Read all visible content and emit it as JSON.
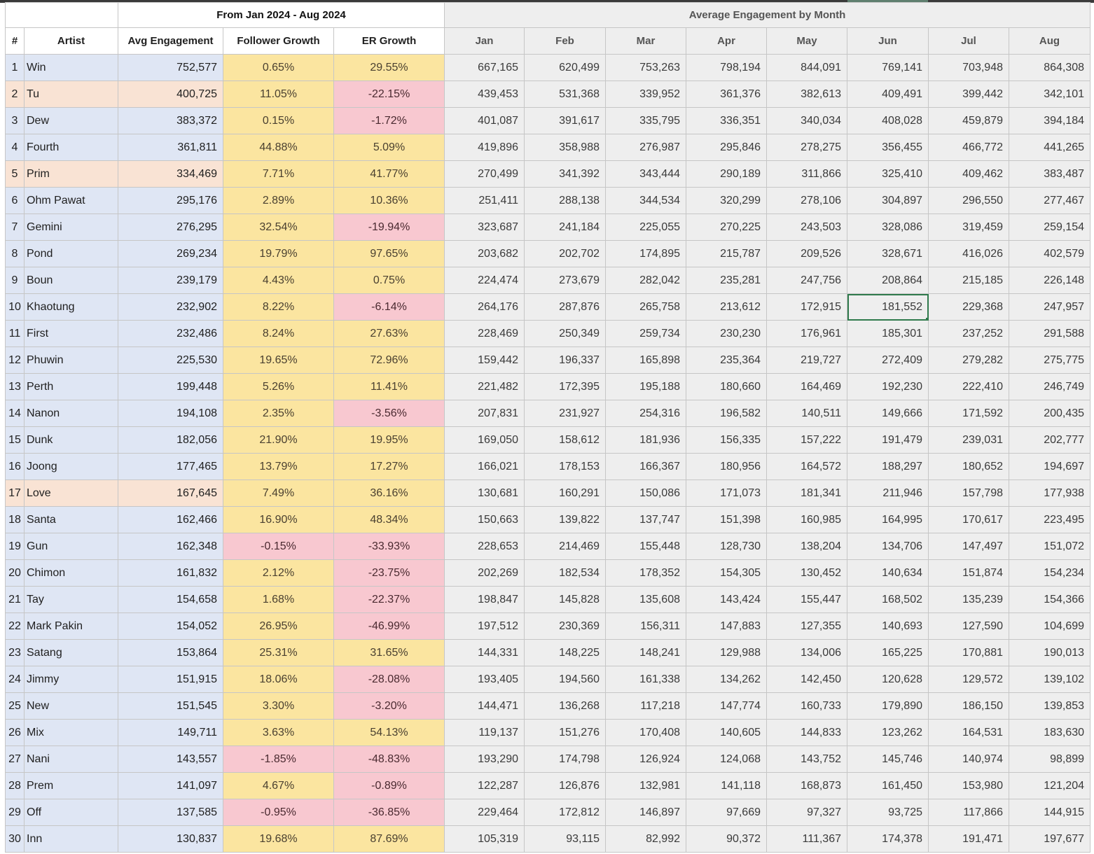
{
  "header": {
    "period_label": "From Jan 2024 - Aug 2024",
    "monthly_label": "Average Engagement by Month",
    "columns": [
      "#",
      "Artist",
      "Avg Engagement",
      "Follower Growth",
      "ER Growth"
    ],
    "months": [
      "Jan",
      "Feb",
      "Mar",
      "Apr",
      "May",
      "Jun",
      "Jul",
      "Aug"
    ]
  },
  "colors": {
    "row_blue": "#dfe6f4",
    "row_peach": "#f9e3d4",
    "positive_growth": "#fbe5a0",
    "negative_growth": "#f8c8d0",
    "monthly_bg": "#eeeeee",
    "selection": "#2f7a4c"
  },
  "selected_cell": {
    "row": "10",
    "month": "Jun",
    "value": "181,552"
  },
  "rows": [
    {
      "rank": "1",
      "artist": "Win",
      "tone": "blue",
      "avg": "752,577",
      "fg": "0.65%",
      "fg_neg": false,
      "er": "29.55%",
      "er_neg": false,
      "months": [
        "667,165",
        "620,499",
        "753,263",
        "798,194",
        "844,091",
        "769,141",
        "703,948",
        "864,308"
      ]
    },
    {
      "rank": "2",
      "artist": "Tu",
      "tone": "peach",
      "avg": "400,725",
      "fg": "11.05%",
      "fg_neg": false,
      "er": "-22.15%",
      "er_neg": true,
      "months": [
        "439,453",
        "531,368",
        "339,952",
        "361,376",
        "382,613",
        "409,491",
        "399,442",
        "342,101"
      ]
    },
    {
      "rank": "3",
      "artist": "Dew",
      "tone": "blue",
      "avg": "383,372",
      "fg": "0.15%",
      "fg_neg": false,
      "er": "-1.72%",
      "er_neg": true,
      "months": [
        "401,087",
        "391,617",
        "335,795",
        "336,351",
        "340,034",
        "408,028",
        "459,879",
        "394,184"
      ]
    },
    {
      "rank": "4",
      "artist": "Fourth",
      "tone": "blue",
      "avg": "361,811",
      "fg": "44.88%",
      "fg_neg": false,
      "er": "5.09%",
      "er_neg": false,
      "months": [
        "419,896",
        "358,988",
        "276,987",
        "295,846",
        "278,275",
        "356,455",
        "466,772",
        "441,265"
      ]
    },
    {
      "rank": "5",
      "artist": "Prim",
      "tone": "peach",
      "avg": "334,469",
      "fg": "7.71%",
      "fg_neg": false,
      "er": "41.77%",
      "er_neg": false,
      "months": [
        "270,499",
        "341,392",
        "343,444",
        "290,189",
        "311,866",
        "325,410",
        "409,462",
        "383,487"
      ]
    },
    {
      "rank": "6",
      "artist": "Ohm Pawat",
      "tone": "blue",
      "avg": "295,176",
      "fg": "2.89%",
      "fg_neg": false,
      "er": "10.36%",
      "er_neg": false,
      "months": [
        "251,411",
        "288,138",
        "344,534",
        "320,299",
        "278,106",
        "304,897",
        "296,550",
        "277,467"
      ]
    },
    {
      "rank": "7",
      "artist": "Gemini",
      "tone": "blue",
      "avg": "276,295",
      "fg": "32.54%",
      "fg_neg": false,
      "er": "-19.94%",
      "er_neg": true,
      "months": [
        "323,687",
        "241,184",
        "225,055",
        "270,225",
        "243,503",
        "328,086",
        "319,459",
        "259,154"
      ]
    },
    {
      "rank": "8",
      "artist": "Pond",
      "tone": "blue",
      "avg": "269,234",
      "fg": "19.79%",
      "fg_neg": false,
      "er": "97.65%",
      "er_neg": false,
      "months": [
        "203,682",
        "202,702",
        "174,895",
        "215,787",
        "209,526",
        "328,671",
        "416,026",
        "402,579"
      ]
    },
    {
      "rank": "9",
      "artist": "Boun",
      "tone": "blue",
      "avg": "239,179",
      "fg": "4.43%",
      "fg_neg": false,
      "er": "0.75%",
      "er_neg": false,
      "months": [
        "224,474",
        "273,679",
        "282,042",
        "235,281",
        "247,756",
        "208,864",
        "215,185",
        "226,148"
      ]
    },
    {
      "rank": "10",
      "artist": "Khaotung",
      "tone": "blue",
      "avg": "232,902",
      "fg": "8.22%",
      "fg_neg": false,
      "er": "-6.14%",
      "er_neg": true,
      "months": [
        "264,176",
        "287,876",
        "265,758",
        "213,612",
        "172,915",
        "181,552",
        "229,368",
        "247,957"
      ]
    },
    {
      "rank": "11",
      "artist": "First",
      "tone": "blue",
      "avg": "232,486",
      "fg": "8.24%",
      "fg_neg": false,
      "er": "27.63%",
      "er_neg": false,
      "months": [
        "228,469",
        "250,349",
        "259,734",
        "230,230",
        "176,961",
        "185,301",
        "237,252",
        "291,588"
      ]
    },
    {
      "rank": "12",
      "artist": "Phuwin",
      "tone": "blue",
      "avg": "225,530",
      "fg": "19.65%",
      "fg_neg": false,
      "er": "72.96%",
      "er_neg": false,
      "months": [
        "159,442",
        "196,337",
        "165,898",
        "235,364",
        "219,727",
        "272,409",
        "279,282",
        "275,775"
      ]
    },
    {
      "rank": "13",
      "artist": "Perth",
      "tone": "blue",
      "avg": "199,448",
      "fg": "5.26%",
      "fg_neg": false,
      "er": "11.41%",
      "er_neg": false,
      "months": [
        "221,482",
        "172,395",
        "195,188",
        "180,660",
        "164,469",
        "192,230",
        "222,410",
        "246,749"
      ]
    },
    {
      "rank": "14",
      "artist": "Nanon",
      "tone": "blue",
      "avg": "194,108",
      "fg": "2.35%",
      "fg_neg": false,
      "er": "-3.56%",
      "er_neg": true,
      "months": [
        "207,831",
        "231,927",
        "254,316",
        "196,582",
        "140,511",
        "149,666",
        "171,592",
        "200,435"
      ]
    },
    {
      "rank": "15",
      "artist": "Dunk",
      "tone": "blue",
      "avg": "182,056",
      "fg": "21.90%",
      "fg_neg": false,
      "er": "19.95%",
      "er_neg": false,
      "months": [
        "169,050",
        "158,612",
        "181,936",
        "156,335",
        "157,222",
        "191,479",
        "239,031",
        "202,777"
      ]
    },
    {
      "rank": "16",
      "artist": "Joong",
      "tone": "blue",
      "avg": "177,465",
      "fg": "13.79%",
      "fg_neg": false,
      "er": "17.27%",
      "er_neg": false,
      "months": [
        "166,021",
        "178,153",
        "166,367",
        "180,956",
        "164,572",
        "188,297",
        "180,652",
        "194,697"
      ]
    },
    {
      "rank": "17",
      "artist": "Love",
      "tone": "peach",
      "avg": "167,645",
      "fg": "7.49%",
      "fg_neg": false,
      "er": "36.16%",
      "er_neg": false,
      "months": [
        "130,681",
        "160,291",
        "150,086",
        "171,073",
        "181,341",
        "211,946",
        "157,798",
        "177,938"
      ]
    },
    {
      "rank": "18",
      "artist": "Santa",
      "tone": "blue",
      "avg": "162,466",
      "fg": "16.90%",
      "fg_neg": false,
      "er": "48.34%",
      "er_neg": false,
      "months": [
        "150,663",
        "139,822",
        "137,747",
        "151,398",
        "160,985",
        "164,995",
        "170,617",
        "223,495"
      ]
    },
    {
      "rank": "19",
      "artist": "Gun",
      "tone": "blue",
      "avg": "162,348",
      "fg": "-0.15%",
      "fg_neg": true,
      "er": "-33.93%",
      "er_neg": true,
      "months": [
        "228,653",
        "214,469",
        "155,448",
        "128,730",
        "138,204",
        "134,706",
        "147,497",
        "151,072"
      ]
    },
    {
      "rank": "20",
      "artist": "Chimon",
      "tone": "blue",
      "avg": "161,832",
      "fg": "2.12%",
      "fg_neg": false,
      "er": "-23.75%",
      "er_neg": true,
      "months": [
        "202,269",
        "182,534",
        "178,352",
        "154,305",
        "130,452",
        "140,634",
        "151,874",
        "154,234"
      ]
    },
    {
      "rank": "21",
      "artist": "Tay",
      "tone": "blue",
      "avg": "154,658",
      "fg": "1.68%",
      "fg_neg": false,
      "er": "-22.37%",
      "er_neg": true,
      "months": [
        "198,847",
        "145,828",
        "135,608",
        "143,424",
        "155,447",
        "168,502",
        "135,239",
        "154,366"
      ]
    },
    {
      "rank": "22",
      "artist": "Mark Pakin",
      "tone": "blue",
      "avg": "154,052",
      "fg": "26.95%",
      "fg_neg": false,
      "er": "-46.99%",
      "er_neg": true,
      "months": [
        "197,512",
        "230,369",
        "156,311",
        "147,883",
        "127,355",
        "140,693",
        "127,590",
        "104,699"
      ]
    },
    {
      "rank": "23",
      "artist": "Satang",
      "tone": "blue",
      "avg": "153,864",
      "fg": "25.31%",
      "fg_neg": false,
      "er": "31.65%",
      "er_neg": false,
      "months": [
        "144,331",
        "148,225",
        "148,241",
        "129,988",
        "134,006",
        "165,225",
        "170,881",
        "190,013"
      ]
    },
    {
      "rank": "24",
      "artist": "Jimmy",
      "tone": "blue",
      "avg": "151,915",
      "fg": "18.06%",
      "fg_neg": false,
      "er": "-28.08%",
      "er_neg": true,
      "months": [
        "193,405",
        "194,560",
        "161,338",
        "134,262",
        "142,450",
        "120,628",
        "129,572",
        "139,102"
      ]
    },
    {
      "rank": "25",
      "artist": "New",
      "tone": "blue",
      "avg": "151,545",
      "fg": "3.30%",
      "fg_neg": false,
      "er": "-3.20%",
      "er_neg": true,
      "months": [
        "144,471",
        "136,268",
        "117,218",
        "147,774",
        "160,733",
        "179,890",
        "186,150",
        "139,853"
      ]
    },
    {
      "rank": "26",
      "artist": "Mix",
      "tone": "blue",
      "avg": "149,711",
      "fg": "3.63%",
      "fg_neg": false,
      "er": "54.13%",
      "er_neg": false,
      "months": [
        "119,137",
        "151,276",
        "170,408",
        "140,605",
        "144,833",
        "123,262",
        "164,531",
        "183,630"
      ]
    },
    {
      "rank": "27",
      "artist": "Nani",
      "tone": "blue",
      "avg": "143,557",
      "fg": "-1.85%",
      "fg_neg": true,
      "er": "-48.83%",
      "er_neg": true,
      "months": [
        "193,290",
        "174,798",
        "126,924",
        "124,068",
        "143,752",
        "145,746",
        "140,974",
        "98,899"
      ]
    },
    {
      "rank": "28",
      "artist": "Prem",
      "tone": "blue",
      "avg": "141,097",
      "fg": "4.67%",
      "fg_neg": false,
      "er": "-0.89%",
      "er_neg": true,
      "months": [
        "122,287",
        "126,876",
        "132,981",
        "141,118",
        "168,873",
        "161,450",
        "153,980",
        "121,204"
      ]
    },
    {
      "rank": "29",
      "artist": "Off",
      "tone": "blue",
      "avg": "137,585",
      "fg": "-0.95%",
      "fg_neg": true,
      "er": "-36.85%",
      "er_neg": true,
      "months": [
        "229,464",
        "172,812",
        "146,897",
        "97,669",
        "97,327",
        "93,725",
        "117,866",
        "144,915"
      ]
    },
    {
      "rank": "30",
      "artist": "Inn",
      "tone": "blue",
      "avg": "130,837",
      "fg": "19.68%",
      "fg_neg": false,
      "er": "87.69%",
      "er_neg": false,
      "months": [
        "105,319",
        "93,115",
        "82,992",
        "90,372",
        "111,367",
        "174,378",
        "191,471",
        "197,677"
      ]
    }
  ]
}
